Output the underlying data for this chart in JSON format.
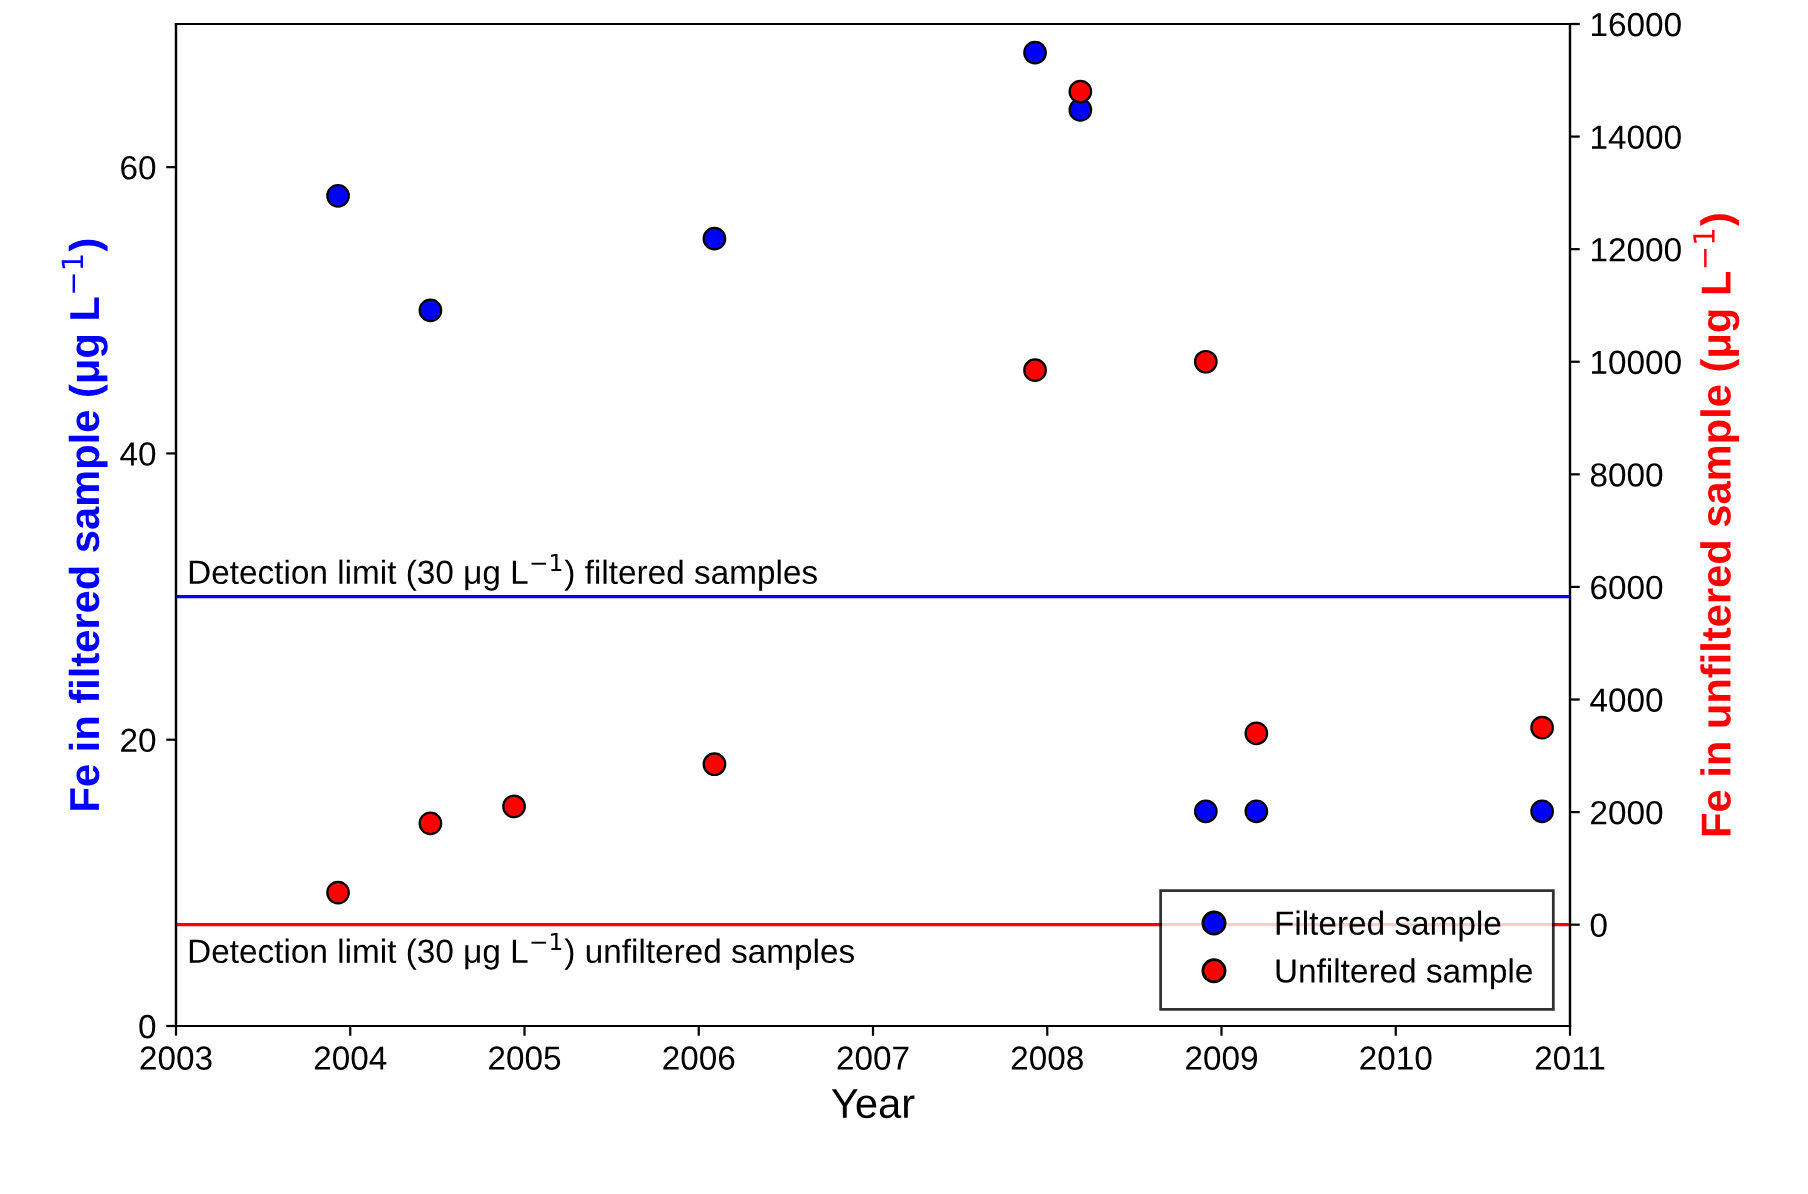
{
  "chart_data": {
    "type": "scatter",
    "xlabel": "Year",
    "ylabel": "Fe in filtered sample (μg L$^{−1}$)",
    "y2label": "Fe in unfiltered sample (μg L$^{−1}$)",
    "xlim": [
      2003,
      2011
    ],
    "xticks": [
      2003,
      2004,
      2005,
      2006,
      2007,
      2008,
      2009,
      2010,
      2011
    ],
    "ylim": [
      0,
      70
    ],
    "yticks": [
      0,
      20,
      40,
      60
    ],
    "y2lim": [
      -1800,
      16000
    ],
    "y2ticks": [
      0,
      2000,
      4000,
      6000,
      8000,
      10000,
      12000,
      14000,
      16000
    ],
    "marker": "circle",
    "legend": "bottom right",
    "grid": false,
    "series": [
      {
        "name": "Filtered sample",
        "color": "#0000ff",
        "x": [
          2003.93,
          2004.46,
          2006.09,
          2007.93,
          2008.19,
          2008.91,
          2009.2,
          2010.84
        ],
        "values": [
          58,
          50,
          55,
          68,
          64,
          15,
          15,
          15
        ]
      },
      {
        "name": "Unfiltered sample",
        "color": "#ff0000",
        "axis": "y2",
        "x": [
          2003.93,
          2004.46,
          2004.94,
          2006.09,
          2007.93,
          2008.19,
          2008.91,
          2009.2,
          2010.84
        ],
        "values": [
          570,
          1800,
          2100,
          2850,
          9850,
          14800,
          10000,
          3400,
          3500
        ]
      }
    ],
    "ref_lines": [
      {
        "axis": "y",
        "value": 30,
        "label": "Detection limit (30 μg L$^{−1}$) filtered samples",
        "color": "#0000ff"
      },
      {
        "axis": "y2",
        "value": 0,
        "label": "Detection limit (30 μg L$^{−1}$) unfiltered samples",
        "color": "#ff0000"
      }
    ]
  }
}
